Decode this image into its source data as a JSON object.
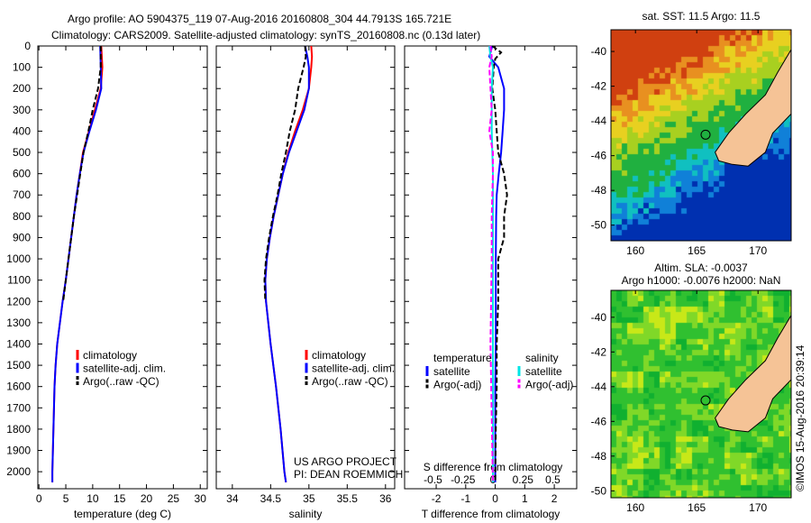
{
  "header": {
    "title_line1": "Argo profile: AO 5904375_119 07-Aug-2016 20160808_304 44.7913S 165.721E",
    "title_line2": "Climatology: CARS2009. Satellite-adjusted climatology: synTS_20160808.nc (0.13d later)"
  },
  "credit": {
    "project": "US ARGO PROJECT",
    "pi": "PI: DEAN ROEMMICH",
    "imos": "©IMOS 15-Aug-2016 20:39:14"
  },
  "colors": {
    "climatology": "#ff0000",
    "satellite": "#0000ff",
    "argo": "#000000",
    "sal_satellite": "#00e5e5",
    "sal_argo": "#ff00ff"
  },
  "chart_data": [
    {
      "type": "line",
      "id": "temperature",
      "xlabel": "temperature (deg C)",
      "ylabel": "",
      "xlim": [
        -0.2,
        31.3
      ],
      "ylim": [
        2080,
        0
      ],
      "xticks": [
        "0",
        "5",
        "10",
        "15",
        "20",
        "25",
        "30"
      ],
      "xtick_values": [
        0,
        5,
        10,
        15,
        20,
        25,
        30
      ],
      "yticks": [
        "0",
        "100",
        "200",
        "300",
        "400",
        "500",
        "600",
        "700",
        "800",
        "900",
        "1000",
        "1100",
        "1200",
        "1300",
        "1400",
        "1500",
        "1600",
        "1700",
        "1800",
        "1900",
        "2000"
      ],
      "legend": [
        "climatology",
        "satellite-adj. clim.",
        "Argo(..raw -QC)"
      ],
      "series": [
        {
          "name": "climatology",
          "style": "solid",
          "color": "#ff0000",
          "depth": [
            0,
            100,
            200,
            300,
            400,
            500,
            600,
            700,
            800,
            900,
            1000,
            1100,
            1200,
            1300,
            1400,
            1500,
            1600,
            1700,
            1800,
            1900,
            2000,
            2050
          ],
          "values": [
            11.6,
            11.8,
            11.5,
            10.4,
            9.3,
            8.2,
            7.6,
            7.0,
            6.5,
            6.0,
            5.5,
            5.0,
            4.4,
            3.9,
            3.4,
            3.1,
            2.9,
            2.8,
            2.7,
            2.6,
            2.5,
            2.5
          ]
        },
        {
          "name": "satellite-adj. clim.",
          "style": "solid",
          "color": "#0000ff",
          "depth": [
            0,
            100,
            200,
            300,
            400,
            500,
            600,
            700,
            800,
            900,
            1000,
            1100,
            1200,
            1300,
            1400,
            1500,
            1600,
            1700,
            1800,
            1900,
            2000,
            2050
          ],
          "values": [
            11.4,
            11.5,
            11.6,
            10.6,
            9.4,
            8.3,
            7.6,
            7.0,
            6.5,
            6.0,
            5.5,
            5.0,
            4.4,
            3.9,
            3.4,
            3.1,
            2.9,
            2.8,
            2.7,
            2.6,
            2.5,
            2.5
          ]
        },
        {
          "name": "Argo(..raw -QC)",
          "style": "dashed",
          "color": "#000000",
          "depth": [
            0,
            100,
            200,
            300,
            400,
            500,
            600,
            700,
            800,
            900,
            1000,
            1100,
            1200
          ],
          "values": [
            11.5,
            11.5,
            11.0,
            10.0,
            9.2,
            8.3,
            7.7,
            7.1,
            6.5,
            6.0,
            5.5,
            5.0,
            4.5
          ]
        }
      ]
    },
    {
      "type": "line",
      "id": "salinity",
      "xlabel": "salinity",
      "xlim": [
        33.79,
        36.12
      ],
      "ylim": [
        2080,
        0
      ],
      "xticks": [
        "34",
        "34.5",
        "35",
        "35.5",
        "36"
      ],
      "xtick_values": [
        34,
        34.5,
        35,
        35.5,
        36
      ],
      "legend": [
        "climatology",
        "satellite-adj. clim.",
        "Argo(..raw -QC)"
      ],
      "series": [
        {
          "name": "climatology",
          "style": "solid",
          "color": "#ff0000",
          "depth": [
            0,
            50,
            100,
            200,
            300,
            400,
            500,
            600,
            700,
            800,
            900,
            1000,
            1100,
            1200,
            1400,
            1600,
            1800,
            2000,
            2050
          ],
          "values": [
            35.03,
            35.04,
            35.03,
            35.0,
            34.92,
            34.82,
            34.73,
            34.66,
            34.6,
            34.54,
            34.49,
            34.45,
            34.43,
            34.44,
            34.5,
            34.57,
            34.63,
            34.68,
            34.7
          ]
        },
        {
          "name": "satellite-adj. clim.",
          "style": "solid",
          "color": "#0000ff",
          "depth": [
            0,
            50,
            100,
            200,
            300,
            400,
            500,
            600,
            700,
            800,
            900,
            1000,
            1100,
            1200,
            1400,
            1600,
            1800,
            2000,
            2050
          ],
          "values": [
            34.95,
            34.98,
            35.0,
            35.0,
            34.94,
            34.84,
            34.74,
            34.66,
            34.6,
            34.54,
            34.49,
            34.45,
            34.43,
            34.44,
            34.5,
            34.57,
            34.63,
            34.68,
            34.7
          ]
        },
        {
          "name": "Argo(..raw -QC)",
          "style": "dashed",
          "color": "#000000",
          "depth": [
            0,
            50,
            100,
            200,
            300,
            400,
            500,
            600,
            700,
            800,
            900,
            1000,
            1100,
            1200
          ],
          "values": [
            34.95,
            34.96,
            34.93,
            34.86,
            34.82,
            34.75,
            34.7,
            34.64,
            34.59,
            34.53,
            34.48,
            34.44,
            34.42,
            34.43
          ]
        }
      ]
    },
    {
      "type": "line",
      "id": "difference",
      "xlabel": "T difference from climatology",
      "x2label": "S difference from climatology",
      "xlim": [
        -3.07,
        2.76
      ],
      "ylim": [
        2080,
        0
      ],
      "xticks": [
        "-2",
        "-1",
        "0",
        "1",
        "2"
      ],
      "xtick_values": [
        -2,
        -1,
        0,
        1,
        2
      ],
      "x2ticks": [
        "-0.5",
        "-0.25",
        "0",
        "0.25",
        "0.5"
      ],
      "x2tick_values": [
        -0.5,
        -0.25,
        0,
        0.25,
        0.5
      ],
      "legend_headers": [
        "temperature",
        "salinity"
      ],
      "legend": [
        "satellite",
        "Argo(-adj)",
        "satellite",
        "Argo(-adj)"
      ],
      "series": [
        {
          "name": "T satellite",
          "style": "solid",
          "color": "#0000ff",
          "depth": [
            0,
            50,
            100,
            200,
            300,
            400,
            500,
            600,
            700,
            800,
            1000,
            1200,
            1400,
            1600,
            2050
          ],
          "values": [
            -0.1,
            -0.2,
            0.1,
            0.3,
            0.3,
            0.25,
            0.2,
            0.12,
            0.05,
            0.03,
            0.02,
            0.02,
            0.02,
            0.0,
            0.0
          ]
        },
        {
          "name": "T Argo(-adj)",
          "style": "dashed",
          "color": "#000000",
          "depth": [
            0,
            30,
            60,
            100,
            200,
            300,
            400,
            500,
            600,
            700,
            800,
            900,
            1000,
            1200,
            1400,
            1600,
            1800,
            2050
          ],
          "values": [
            -0.1,
            0.2,
            0.0,
            -0.05,
            -0.1,
            0.0,
            0.05,
            0.1,
            0.3,
            0.4,
            0.3,
            0.3,
            0.1,
            0.1,
            0.05,
            0.05,
            0.02,
            0.0
          ]
        },
        {
          "name": "S satellite",
          "style": "solid",
          "color": "#00e5e5",
          "depth": [
            0,
            50,
            100,
            200,
            400,
            600,
            800,
            1000,
            1400,
            2050
          ],
          "values": [
            -0.03,
            -0.02,
            0.0,
            -0.01,
            -0.01,
            0.0,
            0.0,
            0.0,
            0.0,
            0.0
          ]
        },
        {
          "name": "S Argo(-adj)",
          "style": "dashed",
          "color": "#ff00ff",
          "depth": [
            0,
            50,
            100,
            200,
            300,
            400,
            500,
            600,
            800,
            1000,
            1400,
            2050
          ],
          "values": [
            -0.02,
            -0.01,
            -0.03,
            -0.02,
            -0.01,
            -0.03,
            0.0,
            0.0,
            -0.01,
            -0.01,
            -0.02,
            0.0
          ]
        }
      ]
    }
  ],
  "maps": [
    {
      "id": "sst",
      "title_line1": "sat. SST: 11.5 Argo: 11.5",
      "title_line2": "",
      "xticks": [
        "160",
        "165",
        "170"
      ],
      "yticks": [
        "-40",
        "-42",
        "-44",
        "-46",
        "-48",
        "-50"
      ]
    },
    {
      "id": "sla",
      "title_line1": "Altim. SLA: -0.0037",
      "title_line2": "Argo h1000: -0.0076 h2000: NaN",
      "xticks": [
        "160",
        "165",
        "170"
      ],
      "yticks": [
        "-40",
        "-42",
        "-44",
        "-46",
        "-48",
        "-50"
      ]
    }
  ],
  "argo_position": {
    "lat": -44.7913,
    "lon": 165.721
  }
}
